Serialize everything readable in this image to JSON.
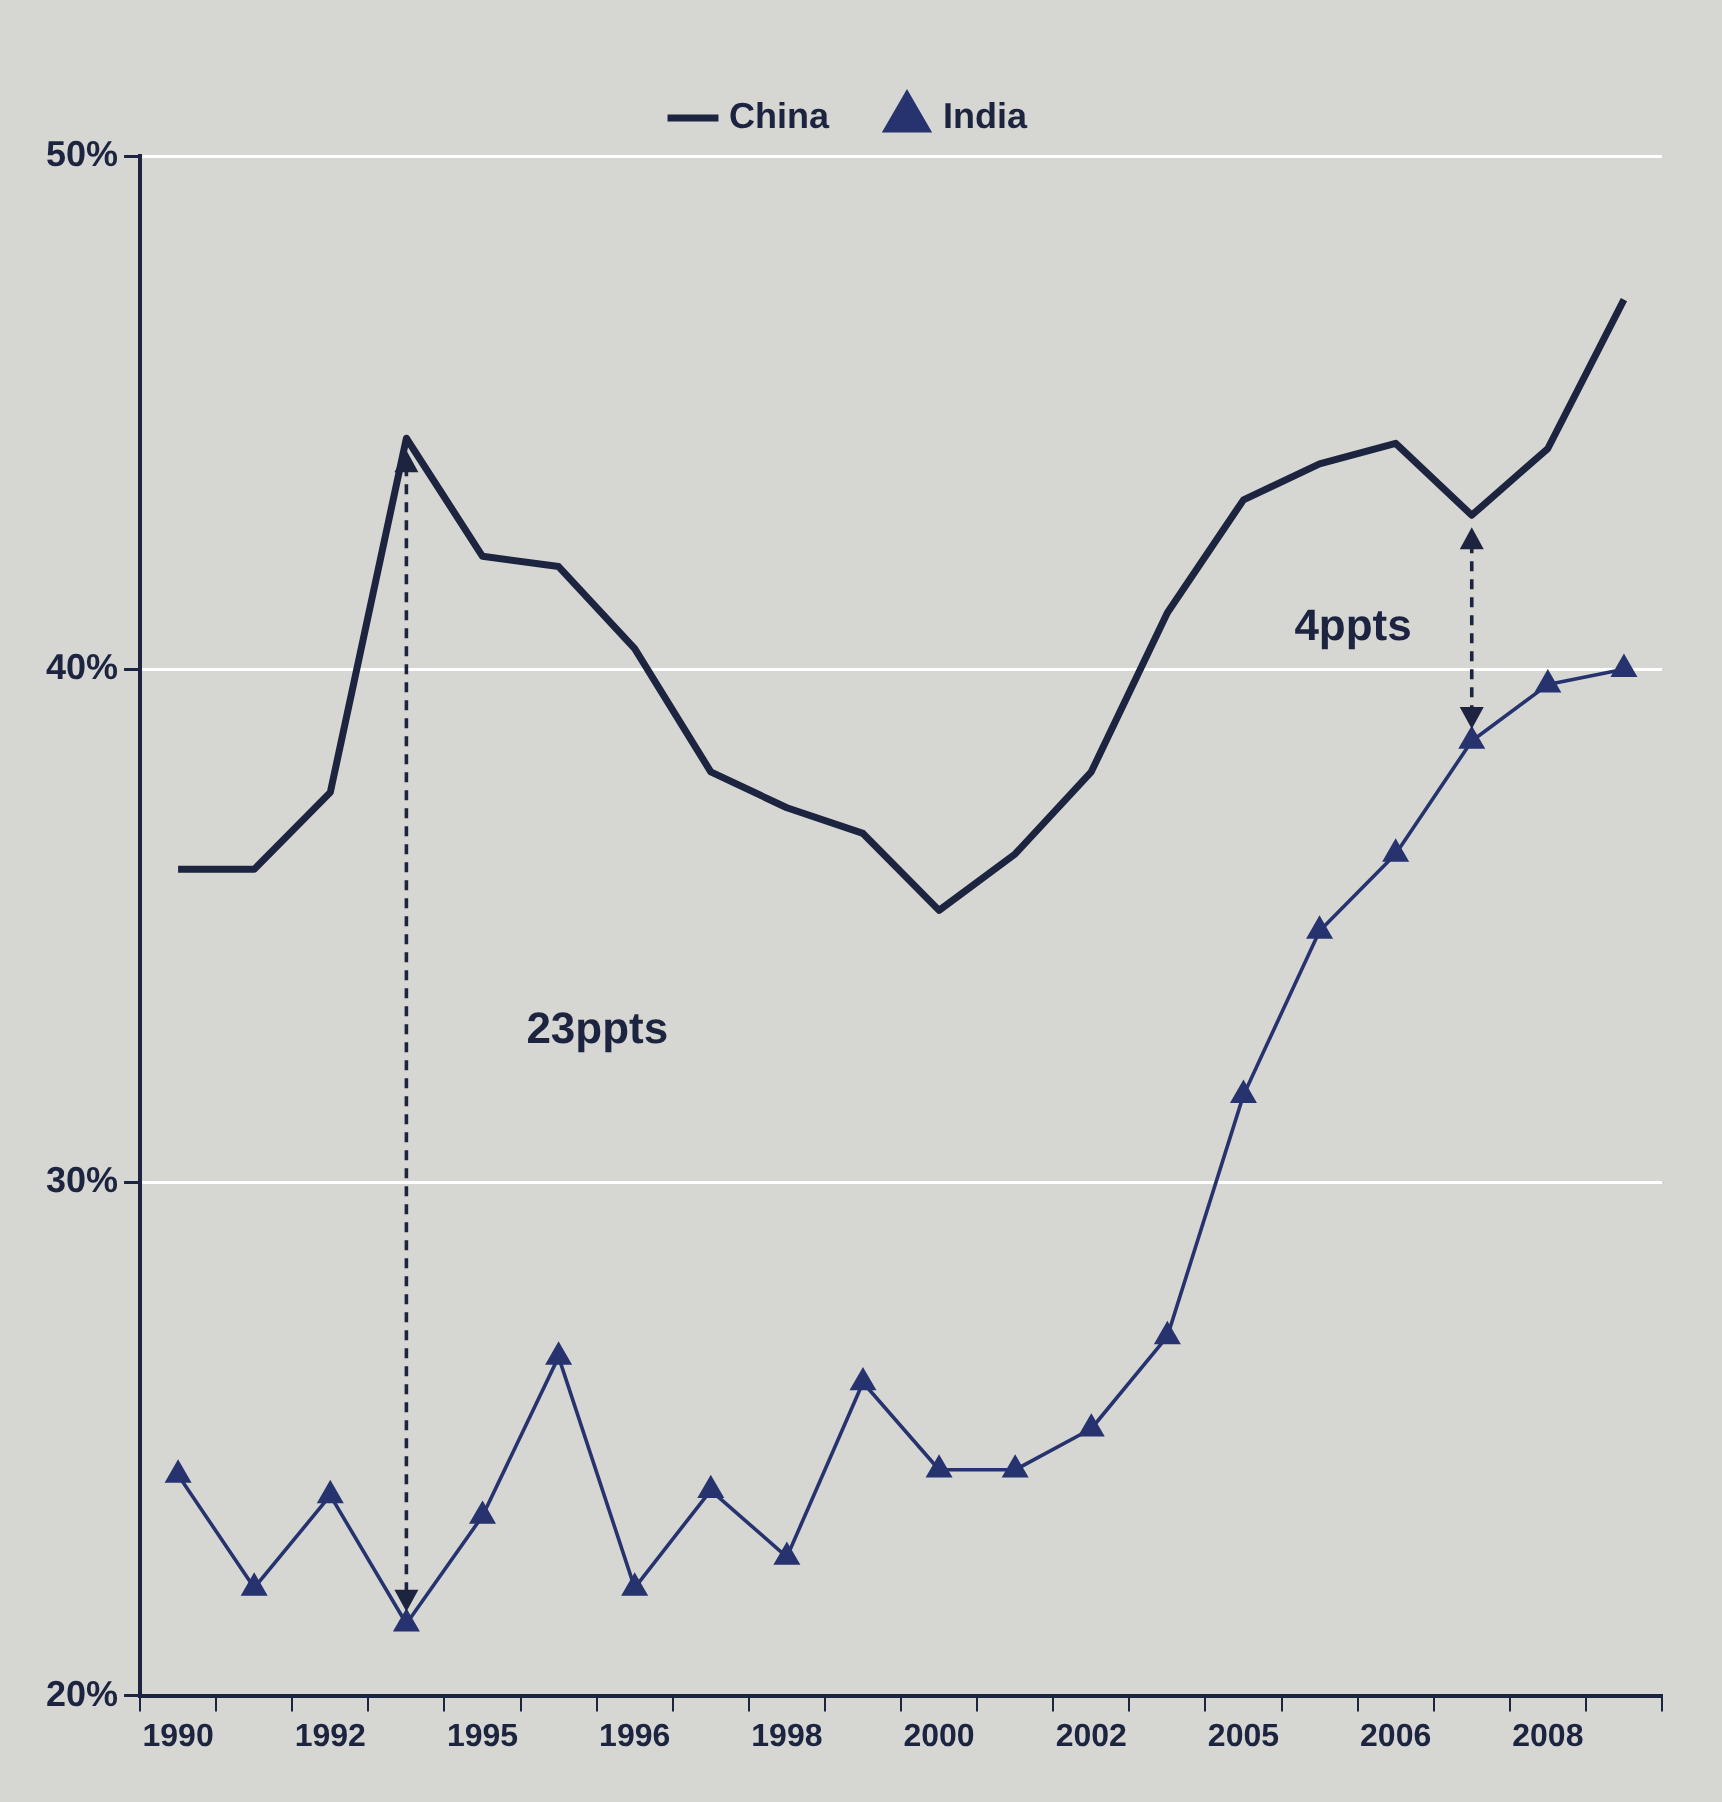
{
  "chart_data": {
    "type": "line",
    "categories": [
      "1990",
      null,
      "1992",
      null,
      "1995",
      null,
      "1996",
      null,
      "1998",
      null,
      "2000",
      null,
      "2002",
      null,
      "2005",
      null,
      "2006",
      null,
      "2008",
      null
    ],
    "series": [
      {
        "name": "China",
        "color": "#1c2440",
        "marker": "none",
        "values": [
          36.1,
          36.1,
          37.6,
          44.5,
          42.2,
          42.0,
          40.4,
          38.0,
          37.3,
          36.8,
          35.3,
          36.4,
          38.0,
          41.1,
          43.3,
          44.0,
          44.4,
          43.0,
          44.3,
          47.2
        ]
      },
      {
        "name": "India",
        "color": "#26336e",
        "marker": "triangle",
        "values": [
          24.3,
          22.1,
          23.9,
          21.4,
          23.5,
          26.6,
          22.1,
          24.0,
          22.7,
          26.1,
          24.4,
          24.4,
          25.2,
          27.0,
          31.7,
          34.9,
          36.4,
          38.6,
          39.7,
          40.0
        ]
      }
    ],
    "ylim": [
      20,
      50
    ],
    "yticks": [
      {
        "value": 20,
        "label": "20%"
      },
      {
        "value": 30,
        "label": "30%"
      },
      {
        "value": 40,
        "label": "40%"
      },
      {
        "value": 50,
        "label": "50%"
      }
    ],
    "grid": "y",
    "legend": "top",
    "line_style": "solid",
    "annotations": [
      "23ppts",
      "4ppts"
    ]
  }
}
